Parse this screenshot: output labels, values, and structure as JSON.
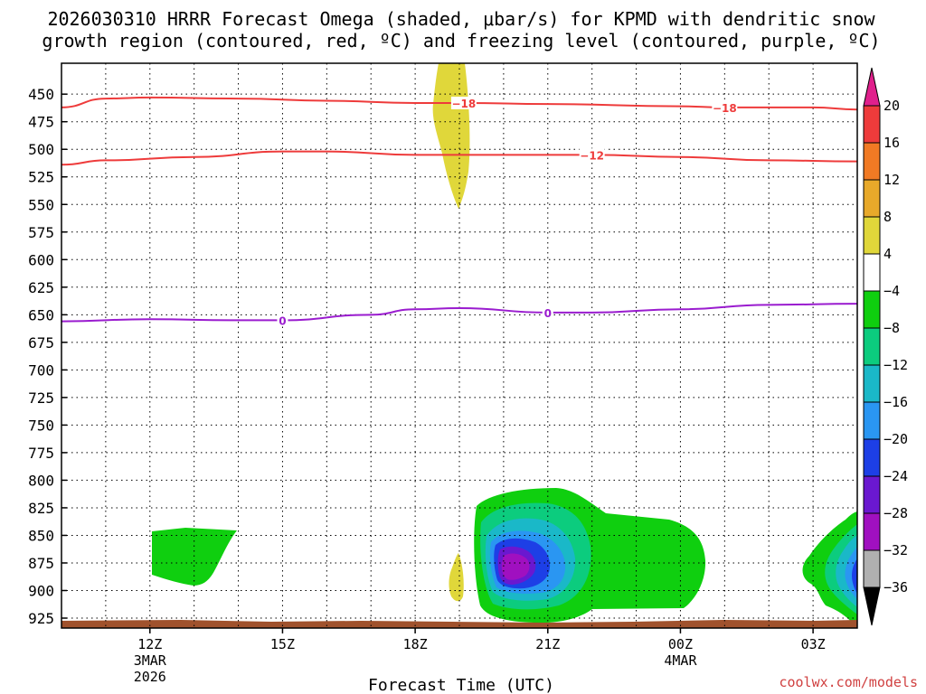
{
  "chart_data": {
    "type": "contour-time-height",
    "title_line1": "2026030310 HRRR Forecast Omega (shaded, μbar/s) for KPMD with dendritic snow",
    "title_line2": "growth region (contoured, red, ºC) and freezing level (contoured, purple, ºC)",
    "xlabel": "Forecast Time (UTC)",
    "credit": "coolwx.com/models",
    "x_ticks": [
      {
        "hour": 12,
        "label": "12Z",
        "sub1": "3MAR",
        "sub2": "2026"
      },
      {
        "hour": 15,
        "label": "15Z",
        "sub1": "",
        "sub2": ""
      },
      {
        "hour": 18,
        "label": "18Z",
        "sub1": "",
        "sub2": ""
      },
      {
        "hour": 21,
        "label": "21Z",
        "sub1": "",
        "sub2": ""
      },
      {
        "hour": 24,
        "label": "00Z",
        "sub1": "4MAR",
        "sub2": ""
      },
      {
        "hour": 27,
        "label": "03Z",
        "sub1": "",
        "sub2": ""
      }
    ],
    "x_range_hours": [
      10,
      28
    ],
    "y_ticks": [
      450,
      475,
      500,
      525,
      550,
      575,
      600,
      625,
      650,
      675,
      700,
      725,
      750,
      775,
      800,
      825,
      850,
      875,
      900,
      925
    ],
    "y_range_hPa": [
      422,
      934
    ],
    "colorbar": {
      "labels": [
        "20",
        "16",
        "12",
        "8",
        "4",
        "−4",
        "−8",
        "−12",
        "−16",
        "−20",
        "−24",
        "−28",
        "−32",
        "−36"
      ],
      "colors": [
        "#ee3b3b",
        "#f17a24",
        "#e8a92a",
        "#e0d73a",
        "#ffffff",
        "#0fcf0f",
        "#0ccc7e",
        "#1ab8c8",
        "#2a96f2",
        "#1d3fe6",
        "#6a18d0",
        "#a010c0",
        "#b0b0b0"
      ],
      "top_arrow_color": "#e0208c",
      "bottom_arrow_color": "#000000"
    },
    "contours": [
      {
        "name": "dgz-minus18",
        "value": -18,
        "label": "−18",
        "color": "#ee3b3b",
        "points": [
          [
            10,
            462
          ],
          [
            11,
            454
          ],
          [
            12,
            453
          ],
          [
            14,
            454
          ],
          [
            16,
            456
          ],
          [
            18,
            458
          ],
          [
            19.1,
            458
          ],
          [
            21,
            459
          ],
          [
            24,
            461
          ],
          [
            25,
            462
          ],
          [
            27,
            462
          ],
          [
            28,
            464
          ]
        ]
      },
      {
        "name": "dgz-minus12",
        "value": -12,
        "label": "−12",
        "color": "#ee3b3b",
        "points": [
          [
            10,
            514
          ],
          [
            11,
            510
          ],
          [
            13,
            507
          ],
          [
            15,
            502
          ],
          [
            16,
            502
          ],
          [
            18,
            505
          ],
          [
            21,
            505
          ],
          [
            22,
            505
          ],
          [
            24,
            507
          ],
          [
            26,
            510
          ],
          [
            28,
            511
          ]
        ]
      },
      {
        "name": "freezing-level",
        "value": 0,
        "label": "0",
        "color": "#9a1ccf",
        "points": [
          [
            10,
            656
          ],
          [
            12,
            654
          ],
          [
            14,
            655
          ],
          [
            15,
            655
          ],
          [
            17,
            650
          ],
          [
            18,
            645
          ],
          [
            19,
            644
          ],
          [
            21,
            648
          ],
          [
            22,
            648
          ],
          [
            24,
            645
          ],
          [
            26,
            641
          ],
          [
            28,
            640
          ]
        ]
      }
    ],
    "shaded_regions": [
      {
        "name": "omega-plus4-aloft",
        "level": "4 to 8",
        "color": "#e0d73a"
      },
      {
        "name": "omega-plus4-low",
        "level": "4 to 8",
        "color": "#e0d73a"
      },
      {
        "name": "omega-minus4-12z",
        "level": "-8 to -4",
        "color": "#0fcf0f"
      },
      {
        "name": "omega-main-20z",
        "level": "-4 to -28",
        "color": "#0fcf0f",
        "min_value": -28
      },
      {
        "name": "omega-right-03z",
        "level": "-4 to -24",
        "color": "#0fcf0f",
        "min_value": -24
      }
    ]
  }
}
